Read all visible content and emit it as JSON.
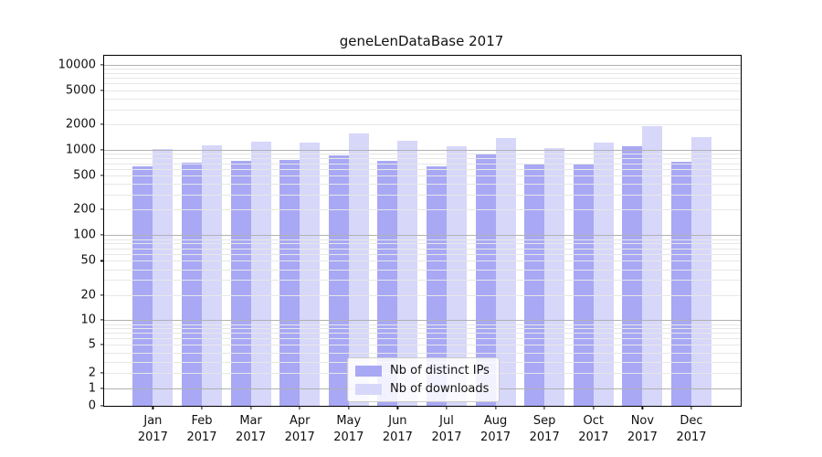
{
  "chart_data": {
    "type": "bar",
    "title": "geneLenDataBase 2017",
    "categories": [
      "Jan 2017",
      "Feb 2017",
      "Mar 2017",
      "Apr 2017",
      "May 2017",
      "Jun 2017",
      "Jul 2017",
      "Aug 2017",
      "Sep 2017",
      "Oct 2017",
      "Nov 2017",
      "Dec 2017"
    ],
    "series": [
      {
        "name": "Nb of distinct IPs",
        "color": "#a8a8f5",
        "values": [
          650,
          710,
          750,
          760,
          870,
          740,
          650,
          880,
          680,
          670,
          1110,
          730
        ]
      },
      {
        "name": "Nb of downloads",
        "color": "#d7d7fa",
        "values": [
          1030,
          1120,
          1250,
          1210,
          1550,
          1270,
          1100,
          1390,
          1040,
          1230,
          1900,
          1410
        ]
      }
    ],
    "yscale": "symlog",
    "yticks": [
      0,
      1,
      2,
      5,
      10,
      20,
      50,
      100,
      200,
      500,
      1000,
      2000,
      5000,
      10000
    ],
    "ylim": [
      0,
      12700
    ],
    "xlabel": "",
    "ylabel": "",
    "grid": "major gray + minor light, drawn over bars",
    "legend_position": "lower center",
    "colors": {
      "major_grid": "#b1b1b1",
      "minor_grid": "#e7e7e7",
      "axis": "#000000",
      "text": "#111111"
    }
  }
}
